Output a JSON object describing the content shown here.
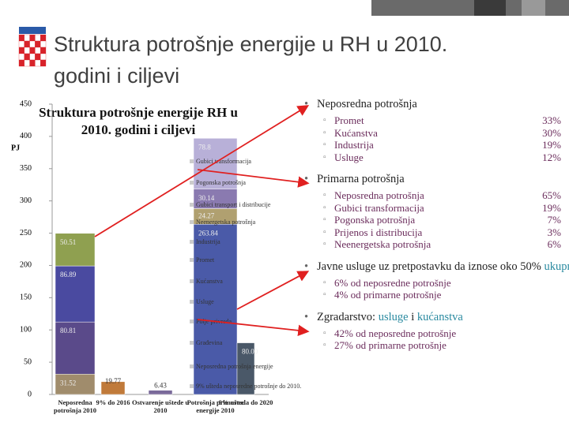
{
  "title": "Struktura potrošnje energije u RH u 2010. godini i ciljevi",
  "chart": {
    "title": "Struktura potrošnje energije RH u 2010. godini i ciljevi",
    "y_label": "PJ",
    "ylim": [
      0,
      450
    ],
    "yticks": [
      0,
      50,
      100,
      150,
      200,
      250,
      300,
      350,
      400,
      450
    ],
    "categories": [
      "Neposredna potrošnja 2010",
      "9% do 2016",
      "Ostvarenje uštede u 2010",
      "Potrošnja primarne energije 2010",
      "9% ušteda do 2020"
    ],
    "bars": [
      [
        {
          "value": 31.52,
          "color": "#a08c6c"
        },
        {
          "value": 80.81,
          "color": "#5a4a8a"
        },
        {
          "value": 86.89,
          "color": "#4a4aa0"
        },
        {
          "value": 50.51,
          "color": "#8fa050"
        }
      ],
      [
        {
          "value": 19.77,
          "color": "#c07a3a"
        }
      ],
      [
        {
          "value": 6.43,
          "color": "#7a6a9a"
        }
      ],
      [
        {
          "value": 263.84,
          "color": "#4a5aa8"
        },
        {
          "value": 24.27,
          "color": "#b0a070"
        },
        {
          "value": 30.14,
          "color": "#8a7ab0"
        },
        {
          "value": 78.8,
          "color": "#b8b0d8"
        }
      ],
      [
        {
          "value": 80,
          "value_label": "80.00",
          "color": "#4a5868"
        }
      ]
    ],
    "labels": [
      "Gubici transformacija",
      "Pogonska potrošnja",
      "Gubici transport i distribucije",
      "Neenergetska potrošnja",
      "Industrija",
      "Promet",
      "Kućanstva",
      "Usluge",
      "Polje privreda",
      "Građevina",
      "Neposredna potrošnja energije",
      "9% ušteda neposredne potrošnje do 2010."
    ]
  },
  "bullets": [
    {
      "parts": [
        {
          "text": "Neposredna potrošnja"
        }
      ],
      "items": [
        {
          "label": "Promet",
          "value": "33%"
        },
        {
          "label": "Kućanstva",
          "value": "30%"
        },
        {
          "label": "Industrija",
          "value": "19%"
        },
        {
          "label": "Usluge",
          "value": "12%"
        }
      ]
    },
    {
      "parts": [
        {
          "text": "Primarna potrošnja"
        }
      ],
      "items": [
        {
          "label": "Neposredna potrošnja",
          "value": "65%"
        },
        {
          "label": "Gubici transformacija",
          "value": "19%"
        },
        {
          "label": "Pogonska potrošnja",
          "value": "7%"
        },
        {
          "label": "Prijenos i distribucija",
          "value": "3%"
        },
        {
          "label": "Neenergetska potrošnja",
          "value": "6%"
        }
      ]
    },
    {
      "parts": [
        {
          "text": "Javne usluge uz pretpostavku da iznose oko 50% "
        },
        {
          "text": "ukupnih usluga",
          "highlight": true
        }
      ],
      "items": [
        {
          "label": "6% od neposredne potrošnje"
        },
        {
          "label": "4% od primarne potrošnje"
        }
      ]
    },
    {
      "parts": [
        {
          "text": "Zgradarstvo: "
        },
        {
          "text": "usluge",
          "highlight": true
        },
        {
          "text": " i "
        },
        {
          "text": "kućanstva",
          "highlight": true
        }
      ],
      "items": [
        {
          "label": "42% od neposredne potrošnje"
        },
        {
          "label": "27% od primarne potrošnje"
        }
      ]
    }
  ]
}
